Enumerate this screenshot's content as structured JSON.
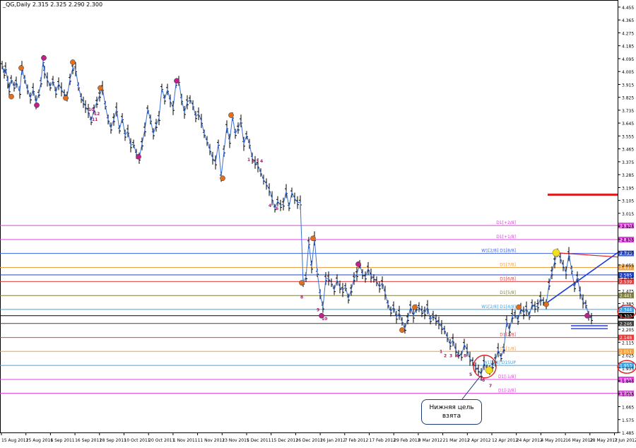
{
  "window": {
    "symbol": "_QG,Daily",
    "ohlc": "2.315 2.325 2.290 2.300"
  },
  "colors": {
    "background": "#ffffff",
    "axis": "#000000",
    "price_line": "#3b6fd6",
    "bar": "#000000"
  },
  "y_axis": {
    "min": 1.485,
    "max": 4.455,
    "ticks": [
      "4.455",
      "4.365",
      "4.275",
      "4.185",
      "4.095",
      "4.005",
      "3.915",
      "3.825",
      "3.735",
      "3.645",
      "3.555",
      "3.465",
      "3.375",
      "3.285",
      "3.195",
      "3.105",
      "3.015",
      "2.925",
      "2.835",
      "2.745",
      "2.655",
      "2.565",
      "2.475",
      "2.385",
      "2.295",
      "2.205",
      "2.115",
      "2.025",
      "1.935",
      "1.845",
      "1.755",
      "1.665",
      "1.575",
      "1.485"
    ]
  },
  "x_axis": {
    "ticks": [
      "15 Aug 2011",
      "25 Aug 2011",
      "6 Sep 2011",
      "16 Sep 2011",
      "28 Sep 2011",
      "10 Oct 2011",
      "20 Oct 2011",
      "1 Nov 2011",
      "11 Nov 2011",
      "23 Nov 2011",
      "5 Dec 2011",
      "15 Dec 2011",
      "26 Dec 2011",
      "26 Jan 2012",
      "7 Feb 2012",
      "17 Feb 2012",
      "29 Feb 2012",
      "9 Mar 2012",
      "21 Mar 2012",
      "2 Apr 2012",
      "12 Apr 2012",
      "24 Apr 2012",
      "4 May 2012",
      "16 May 2012",
      "28 May 2012",
      "7 Jun 2012"
    ]
  },
  "levels": [
    {
      "label": "D1[+2/8]",
      "price": "2.930",
      "color": "#e040e0"
    },
    {
      "label": "D1[+1/8]",
      "price": "2.832",
      "color": "#e040e0"
    },
    {
      "label": "W1[2/8] D1[8/8]",
      "price": "2.735",
      "color": "#4060e0"
    },
    {
      "label": "D1[7/8]",
      "price": "2.637",
      "color": "#f0a040"
    },
    {
      "label": "",
      "price": "2.585",
      "color": "#2040c0"
    },
    {
      "label": "D1[6/8]",
      "price": "2.539",
      "color": "#e04040"
    },
    {
      "label": "D1[5/8]",
      "price": "2.441",
      "color": "#808040"
    },
    {
      "label": "W1[2/8] D1[4/8]",
      "price": "2.344",
      "color": "#40a0e0"
    },
    {
      "label": "",
      "price": "2.300",
      "color": "#000000"
    },
    {
      "label": "",
      "price": "2.246",
      "color": "#404040"
    },
    {
      "label": "D1[2/8]",
      "price": "2.148",
      "color": "#e04040"
    },
    {
      "label": "D1[1/8]",
      "price": "2.051",
      "color": "#f0a040"
    },
    {
      "label": "W1[1/8] D1SUP",
      "price": "1.953",
      "color": "#40a0e0"
    },
    {
      "label": "D1[-1/8]",
      "price": "1.855",
      "color": "#e040e0"
    },
    {
      "label": "D1[-2/8]",
      "price": "1.758",
      "color": "#e040e0"
    }
  ],
  "red_short_level": "3.145",
  "callout": {
    "line1": "Нижняя цель",
    "line2": "взята"
  },
  "wave_labels": [
    "10",
    "11",
    "12",
    "1",
    "2",
    "3",
    "4",
    "5",
    "6",
    "7",
    "8",
    "9",
    "10"
  ],
  "price_path": [
    [
      0,
      4.05
    ],
    [
      3,
      3.99
    ],
    [
      5,
      4.03
    ],
    [
      8,
      3.93
    ],
    [
      10,
      3.88
    ],
    [
      13,
      3.95
    ],
    [
      17,
      3.9
    ],
    [
      20,
      3.93
    ],
    [
      25,
      3.86
    ],
    [
      28,
      4.03
    ],
    [
      32,
      3.95
    ],
    [
      36,
      3.88
    ],
    [
      40,
      3.82
    ],
    [
      44,
      3.88
    ],
    [
      48,
      3.79
    ],
    [
      52,
      3.85
    ],
    [
      55,
      3.93
    ],
    [
      58,
      4.08
    ],
    [
      60,
      4.0
    ],
    [
      64,
      3.95
    ],
    [
      68,
      3.9
    ],
    [
      72,
      3.94
    ],
    [
      76,
      3.86
    ],
    [
      80,
      3.92
    ],
    [
      84,
      3.88
    ],
    [
      88,
      3.85
    ],
    [
      92,
      3.83
    ],
    [
      96,
      3.95
    ],
    [
      100,
      4.03
    ],
    [
      104,
      4.02
    ],
    [
      108,
      3.9
    ],
    [
      112,
      3.82
    ],
    [
      115,
      3.79
    ],
    [
      118,
      3.76
    ],
    [
      122,
      3.73
    ],
    [
      126,
      3.66
    ],
    [
      130,
      3.74
    ],
    [
      134,
      3.79
    ],
    [
      138,
      3.84
    ],
    [
      142,
      3.89
    ],
    [
      146,
      3.77
    ],
    [
      150,
      3.67
    ],
    [
      154,
      3.61
    ],
    [
      158,
      3.67
    ],
    [
      162,
      3.74
    ],
    [
      166,
      3.6
    ],
    [
      170,
      3.68
    ],
    [
      174,
      3.56
    ],
    [
      178,
      3.59
    ],
    [
      182,
      3.49
    ],
    [
      186,
      3.5
    ],
    [
      190,
      3.43
    ],
    [
      194,
      3.4
    ],
    [
      198,
      3.5
    ],
    [
      202,
      3.6
    ],
    [
      206,
      3.74
    ],
    [
      210,
      3.67
    ],
    [
      214,
      3.57
    ],
    [
      218,
      3.63
    ],
    [
      222,
      3.68
    ],
    [
      226,
      3.89
    ],
    [
      230,
      3.81
    ],
    [
      234,
      3.88
    ],
    [
      238,
      3.8
    ],
    [
      242,
      3.75
    ],
    [
      246,
      3.92
    ],
    [
      250,
      3.94
    ],
    [
      254,
      3.81
    ],
    [
      258,
      3.72
    ],
    [
      262,
      3.79
    ],
    [
      266,
      3.81
    ],
    [
      270,
      3.77
    ],
    [
      274,
      3.69
    ],
    [
      278,
      3.71
    ],
    [
      282,
      3.66
    ],
    [
      286,
      3.57
    ],
    [
      290,
      3.52
    ],
    [
      294,
      3.46
    ],
    [
      298,
      3.4
    ],
    [
      302,
      3.37
    ],
    [
      306,
      3.5
    ],
    [
      310,
      3.27
    ],
    [
      314,
      3.45
    ],
    [
      318,
      3.62
    ],
    [
      322,
      3.52
    ],
    [
      326,
      3.69
    ],
    [
      330,
      3.57
    ],
    [
      334,
      3.61
    ],
    [
      338,
      3.66
    ],
    [
      342,
      3.5
    ],
    [
      346,
      3.56
    ],
    [
      350,
      3.5
    ],
    [
      354,
      3.4
    ],
    [
      358,
      3.37
    ],
    [
      362,
      3.35
    ],
    [
      366,
      3.3
    ],
    [
      370,
      3.25
    ],
    [
      374,
      3.22
    ],
    [
      378,
      3.18
    ],
    [
      382,
      3.12
    ],
    [
      386,
      3.05
    ],
    [
      390,
      3.1
    ],
    [
      394,
      3.07
    ],
    [
      398,
      3.08
    ],
    [
      402,
      3.17
    ],
    [
      406,
      3.06
    ],
    [
      410,
      3.16
    ],
    [
      414,
      3.12
    ],
    [
      418,
      3.09
    ],
    [
      422,
      3.09
    ],
    [
      426,
      2.53
    ],
    [
      430,
      2.57
    ],
    [
      434,
      2.81
    ],
    [
      438,
      2.64
    ],
    [
      442,
      2.84
    ],
    [
      446,
      2.6
    ],
    [
      450,
      2.45
    ],
    [
      454,
      2.36
    ],
    [
      458,
      2.56
    ],
    [
      462,
      2.56
    ],
    [
      466,
      2.53
    ],
    [
      470,
      2.48
    ],
    [
      474,
      2.55
    ],
    [
      478,
      2.5
    ],
    [
      482,
      2.48
    ],
    [
      486,
      2.5
    ],
    [
      490,
      2.42
    ],
    [
      494,
      2.48
    ],
    [
      498,
      2.56
    ],
    [
      502,
      2.59
    ],
    [
      506,
      2.66
    ],
    [
      510,
      2.59
    ],
    [
      514,
      2.57
    ],
    [
      518,
      2.63
    ],
    [
      522,
      2.58
    ],
    [
      526,
      2.56
    ],
    [
      530,
      2.54
    ],
    [
      534,
      2.5
    ],
    [
      538,
      2.53
    ],
    [
      542,
      2.46
    ],
    [
      546,
      2.38
    ],
    [
      550,
      2.33
    ],
    [
      554,
      2.36
    ],
    [
      558,
      2.29
    ],
    [
      562,
      2.32
    ],
    [
      566,
      2.26
    ],
    [
      570,
      2.21
    ],
    [
      574,
      2.28
    ],
    [
      578,
      2.36
    ],
    [
      582,
      2.3
    ],
    [
      586,
      2.35
    ],
    [
      590,
      2.36
    ],
    [
      594,
      2.33
    ],
    [
      598,
      2.32
    ],
    [
      602,
      2.36
    ],
    [
      606,
      2.27
    ],
    [
      610,
      2.3
    ],
    [
      614,
      2.27
    ],
    [
      618,
      2.25
    ],
    [
      622,
      2.22
    ],
    [
      626,
      2.2
    ],
    [
      630,
      2.15
    ],
    [
      634,
      2.1
    ],
    [
      638,
      2.13
    ],
    [
      642,
      2.06
    ],
    [
      646,
      2.03
    ],
    [
      650,
      2.02
    ],
    [
      654,
      2.1
    ],
    [
      658,
      2.06
    ],
    [
      662,
      2.0
    ],
    [
      666,
      1.98
    ],
    [
      670,
      1.94
    ],
    [
      674,
      1.92
    ],
    [
      678,
      1.89
    ],
    [
      682,
      1.97
    ],
    [
      686,
      1.93
    ],
    [
      690,
      1.92
    ],
    [
      694,
      1.95
    ],
    [
      698,
      1.99
    ],
    [
      702,
      2.06
    ],
    [
      706,
      2.01
    ],
    [
      710,
      2.07
    ],
    [
      714,
      2.26
    ],
    [
      718,
      2.2
    ],
    [
      722,
      2.3
    ],
    [
      726,
      2.31
    ],
    [
      730,
      2.27
    ],
    [
      734,
      2.35
    ],
    [
      738,
      2.32
    ],
    [
      742,
      2.35
    ],
    [
      746,
      2.3
    ],
    [
      750,
      2.38
    ],
    [
      754,
      2.36
    ],
    [
      758,
      2.37
    ],
    [
      762,
      2.42
    ],
    [
      766,
      2.4
    ],
    [
      770,
      2.38
    ],
    [
      774,
      2.52
    ],
    [
      778,
      2.6
    ],
    [
      782,
      2.68
    ],
    [
      786,
      2.74
    ],
    [
      790,
      2.7
    ],
    [
      794,
      2.65
    ],
    [
      798,
      2.6
    ],
    [
      802,
      2.73
    ],
    [
      806,
      2.62
    ],
    [
      810,
      2.5
    ],
    [
      814,
      2.57
    ],
    [
      818,
      2.46
    ],
    [
      822,
      2.4
    ],
    [
      826,
      2.38
    ],
    [
      830,
      2.3
    ],
    [
      834,
      2.28
    ]
  ],
  "markers": [
    {
      "x": 62,
      "price": 4.1,
      "color": "#c0208a"
    },
    {
      "x": 103,
      "price": 4.07,
      "color": "#e07020"
    },
    {
      "x": 30,
      "price": 4.03,
      "color": "#e07020"
    },
    {
      "x": 16,
      "price": 3.83,
      "color": "#e07020"
    },
    {
      "x": 52,
      "price": 3.77,
      "color": "#c0208a"
    },
    {
      "x": 93,
      "price": 3.82,
      "color": "#e07020"
    },
    {
      "x": 142,
      "price": 3.89,
      "color": "#e07020"
    },
    {
      "x": 250,
      "price": 3.94,
      "color": "#c0208a"
    },
    {
      "x": 196,
      "price": 3.41,
      "color": "#c0208a"
    },
    {
      "x": 315,
      "price": 3.26,
      "color": "#e07020"
    },
    {
      "x": 327,
      "price": 3.7,
      "color": "#e07020"
    },
    {
      "x": 443,
      "price": 2.84,
      "color": "#e07020"
    },
    {
      "x": 427,
      "price": 2.53,
      "color": "#e07020"
    },
    {
      "x": 455,
      "price": 2.3,
      "color": "#c0208a"
    },
    {
      "x": 507,
      "price": 2.66,
      "color": "#c0208a"
    },
    {
      "x": 587,
      "price": 2.36,
      "color": "#e07020"
    },
    {
      "x": 569,
      "price": 2.2,
      "color": "#e07020"
    },
    {
      "x": 734,
      "price": 2.36,
      "color": "#e07020"
    },
    {
      "x": 773,
      "price": 2.38,
      "color": "#e07020"
    },
    {
      "x": 831,
      "price": 2.3,
      "color": "#c0208a"
    }
  ]
}
